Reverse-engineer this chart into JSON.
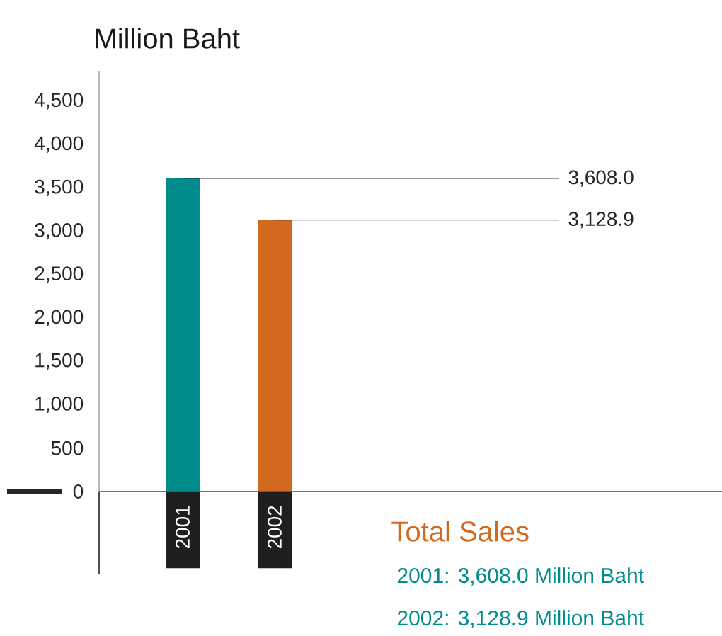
{
  "chart_data": {
    "type": "bar",
    "ylabel": "Million Baht",
    "categories": [
      "2001",
      "2002"
    ],
    "values": [
      3608.0,
      3128.9
    ],
    "colors": [
      "#008c8c",
      "#d2691f"
    ],
    "value_labels": [
      "3,608.0",
      "3,128.9"
    ],
    "ylim": [
      0,
      4850
    ],
    "yticks": [
      0,
      500,
      {
        "value": 1000,
        "label": "1,000"
      },
      {
        "value": 1500,
        "label": "1,500"
      },
      {
        "value": 2000,
        "label": "2,000"
      },
      {
        "value": 2500,
        "label": "2,500"
      },
      {
        "value": 3000,
        "label": "3,000"
      },
      {
        "value": 3500,
        "label": "3,500"
      },
      {
        "value": 4000,
        "label": "4,000"
      },
      {
        "value": 4500,
        "label": "4,500"
      }
    ],
    "annotations": [
      "Total Sales",
      "2001: 3,608.0 Million Baht",
      "2002: 3,128.9 Million Baht"
    ]
  }
}
